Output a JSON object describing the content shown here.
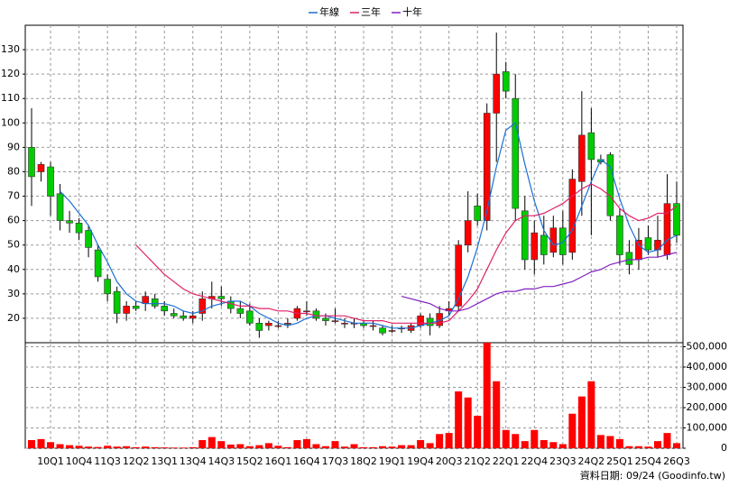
{
  "chart_data": {
    "type": "candlestick",
    "categories": [
      null,
      null,
      "10Q1",
      null,
      null,
      "10Q4",
      null,
      null,
      "11Q3",
      null,
      null,
      "12Q2",
      null,
      null,
      "13Q1",
      null,
      null,
      "13Q4",
      null,
      null,
      "14Q3",
      null,
      null,
      "15Q2",
      null,
      null,
      "16Q1",
      null,
      null,
      "16Q4",
      null,
      null,
      "17Q3",
      null,
      null,
      "18Q2",
      null,
      null,
      "19Q1",
      null,
      null,
      "19Q4",
      null,
      null,
      "20Q3",
      null,
      null,
      "21Q2",
      null,
      null,
      "22Q1",
      null,
      null,
      "22Q4",
      null,
      null,
      "23Q3",
      null,
      null,
      "24Q2",
      null,
      null,
      "25Q1",
      null,
      null,
      "25Q4",
      null,
      null,
      "26Q3"
    ],
    "open": [
      90,
      80,
      82,
      71,
      60,
      59,
      56,
      48,
      36,
      31,
      22,
      25,
      26,
      28,
      25,
      22,
      21,
      20,
      22,
      28,
      29,
      27,
      24,
      23,
      18,
      17,
      17,
      18,
      20,
      23,
      23,
      20,
      19,
      18,
      18,
      18,
      17,
      16,
      15,
      16,
      15,
      17,
      20,
      17,
      23,
      25,
      50,
      66,
      60,
      104,
      121,
      110,
      64,
      44,
      54,
      47,
      57,
      47,
      76,
      96,
      85,
      87,
      62,
      47,
      44,
      53,
      48,
      46,
      67
    ],
    "high": [
      106,
      84,
      84,
      75,
      64,
      61,
      58,
      50,
      38,
      33,
      27,
      27,
      31,
      30,
      27,
      24,
      23,
      23,
      31,
      35,
      33,
      29,
      27,
      26,
      20,
      19,
      19,
      20,
      25,
      27,
      24,
      22,
      24,
      20,
      20,
      19,
      19,
      17,
      17,
      17,
      18,
      22,
      22,
      25,
      27,
      52,
      72,
      71,
      108,
      137,
      125,
      120,
      70,
      60,
      62,
      62,
      64,
      81,
      113,
      106,
      87,
      88,
      65,
      52,
      57,
      58,
      62,
      79,
      76
    ],
    "low": [
      66,
      76,
      62,
      56,
      55,
      52,
      45,
      35,
      27,
      18,
      19,
      23,
      23,
      24,
      21,
      20,
      19,
      18,
      19,
      24,
      25,
      22,
      20,
      17,
      12,
      15,
      16,
      16,
      19,
      21,
      19,
      17,
      18,
      16,
      16,
      16,
      15,
      13,
      14,
      14,
      14,
      16,
      13,
      16,
      21,
      23,
      47,
      58,
      56,
      84,
      110,
      60,
      40,
      38,
      42,
      45,
      42,
      44,
      62,
      54,
      83,
      60,
      42,
      38,
      40,
      46,
      45,
      44,
      51
    ],
    "close": [
      78,
      83,
      70,
      60,
      59,
      55,
      49,
      37,
      30,
      22,
      25,
      24,
      29,
      25,
      23,
      21,
      20,
      21,
      28,
      29,
      28,
      24,
      22,
      18,
      15,
      18,
      17,
      18,
      24,
      23,
      20,
      19,
      19,
      18,
      18,
      17,
      17,
      14,
      15,
      16,
      17,
      21,
      17,
      22,
      24,
      50,
      60,
      60,
      104,
      120,
      113,
      65,
      44,
      55,
      46,
      57,
      46,
      77,
      95,
      85,
      84,
      62,
      46,
      42,
      52,
      48,
      52,
      67,
      54
    ],
    "volume": [
      40000,
      45000,
      30000,
      20000,
      15000,
      12000,
      8000,
      6000,
      12000,
      8000,
      10000,
      5000,
      8000,
      5000,
      4000,
      3000,
      3000,
      5000,
      40000,
      55000,
      35000,
      18000,
      20000,
      10000,
      15000,
      25000,
      12000,
      5000,
      40000,
      45000,
      20000,
      10000,
      35000,
      8000,
      20000,
      5000,
      5000,
      10000,
      8000,
      15000,
      15000,
      40000,
      25000,
      70000,
      75000,
      280000,
      250000,
      160000,
      520000,
      330000,
      90000,
      70000,
      35000,
      90000,
      40000,
      30000,
      20000,
      170000,
      255000,
      330000,
      65000,
      60000,
      45000,
      10000,
      10000,
      8000,
      35000,
      75000,
      25000
    ],
    "up_color": "#ff0000",
    "down_color": "#00cc00",
    "volume_color": "#ff0000",
    "ylim": [
      10,
      140
    ],
    "yticks": [
      20,
      30,
      40,
      50,
      60,
      70,
      80,
      90,
      100,
      110,
      120,
      130
    ],
    "y2lim": [
      0,
      520000
    ],
    "y2ticks": [
      0,
      {
        "value": 100000,
        "label": "100,000"
      },
      {
        "value": 200000,
        "label": "200,000"
      },
      {
        "value": 300000,
        "label": "300,000"
      },
      {
        "value": 400000,
        "label": "400,000"
      },
      {
        "value": 500000,
        "label": "500,000"
      }
    ],
    "grid": true,
    "legend": "top",
    "series": [
      {
        "name": "年線",
        "color": "#1a6fd6",
        "values": [
          null,
          null,
          null,
          72,
          68,
          63,
          58,
          50,
          43,
          35,
          30,
          27,
          26,
          26,
          26,
          25,
          23,
          22,
          23,
          25,
          26,
          27,
          27,
          25,
          22,
          20,
          18,
          17,
          18,
          20,
          21,
          21,
          20,
          19,
          18,
          18,
          18,
          17,
          16,
          16,
          16,
          17,
          18,
          19,
          21,
          28,
          37,
          49,
          64,
          82,
          97,
          100,
          83,
          68,
          56,
          50,
          51,
          56,
          66,
          76,
          85,
          82,
          69,
          58,
          50,
          47,
          48,
          52,
          54
        ]
      },
      {
        "name": "三年",
        "color": "#e0206a",
        "values": [
          null,
          null,
          null,
          null,
          null,
          null,
          null,
          null,
          null,
          null,
          null,
          50,
          46,
          42,
          38,
          35,
          32,
          30,
          29,
          28,
          27,
          26,
          25,
          25,
          24,
          24,
          23,
          23,
          22,
          22,
          21,
          21,
          21,
          21,
          20,
          19,
          19,
          19,
          18,
          18,
          18,
          18,
          18,
          18,
          19,
          23,
          27,
          32,
          40,
          48,
          55,
          60,
          62,
          62,
          63,
          65,
          67,
          70,
          73,
          75,
          73,
          70,
          65,
          62,
          60,
          61,
          63,
          63,
          66
        ]
      },
      {
        "name": "十年",
        "color": "#8020c0",
        "values": [
          null,
          null,
          null,
          null,
          null,
          null,
          null,
          null,
          null,
          null,
          null,
          null,
          null,
          null,
          null,
          null,
          null,
          null,
          null,
          null,
          null,
          null,
          null,
          null,
          null,
          null,
          null,
          null,
          null,
          null,
          null,
          null,
          null,
          null,
          null,
          null,
          null,
          null,
          null,
          29,
          28,
          27,
          26,
          24,
          23,
          23,
          24,
          26,
          28,
          30,
          31,
          31,
          32,
          32,
          33,
          33,
          34,
          35,
          37,
          39,
          40,
          42,
          43,
          44,
          44,
          45,
          45,
          46,
          47
        ]
      }
    ],
    "source": "資料日期: 09/24 (Goodinfo.tw)"
  }
}
